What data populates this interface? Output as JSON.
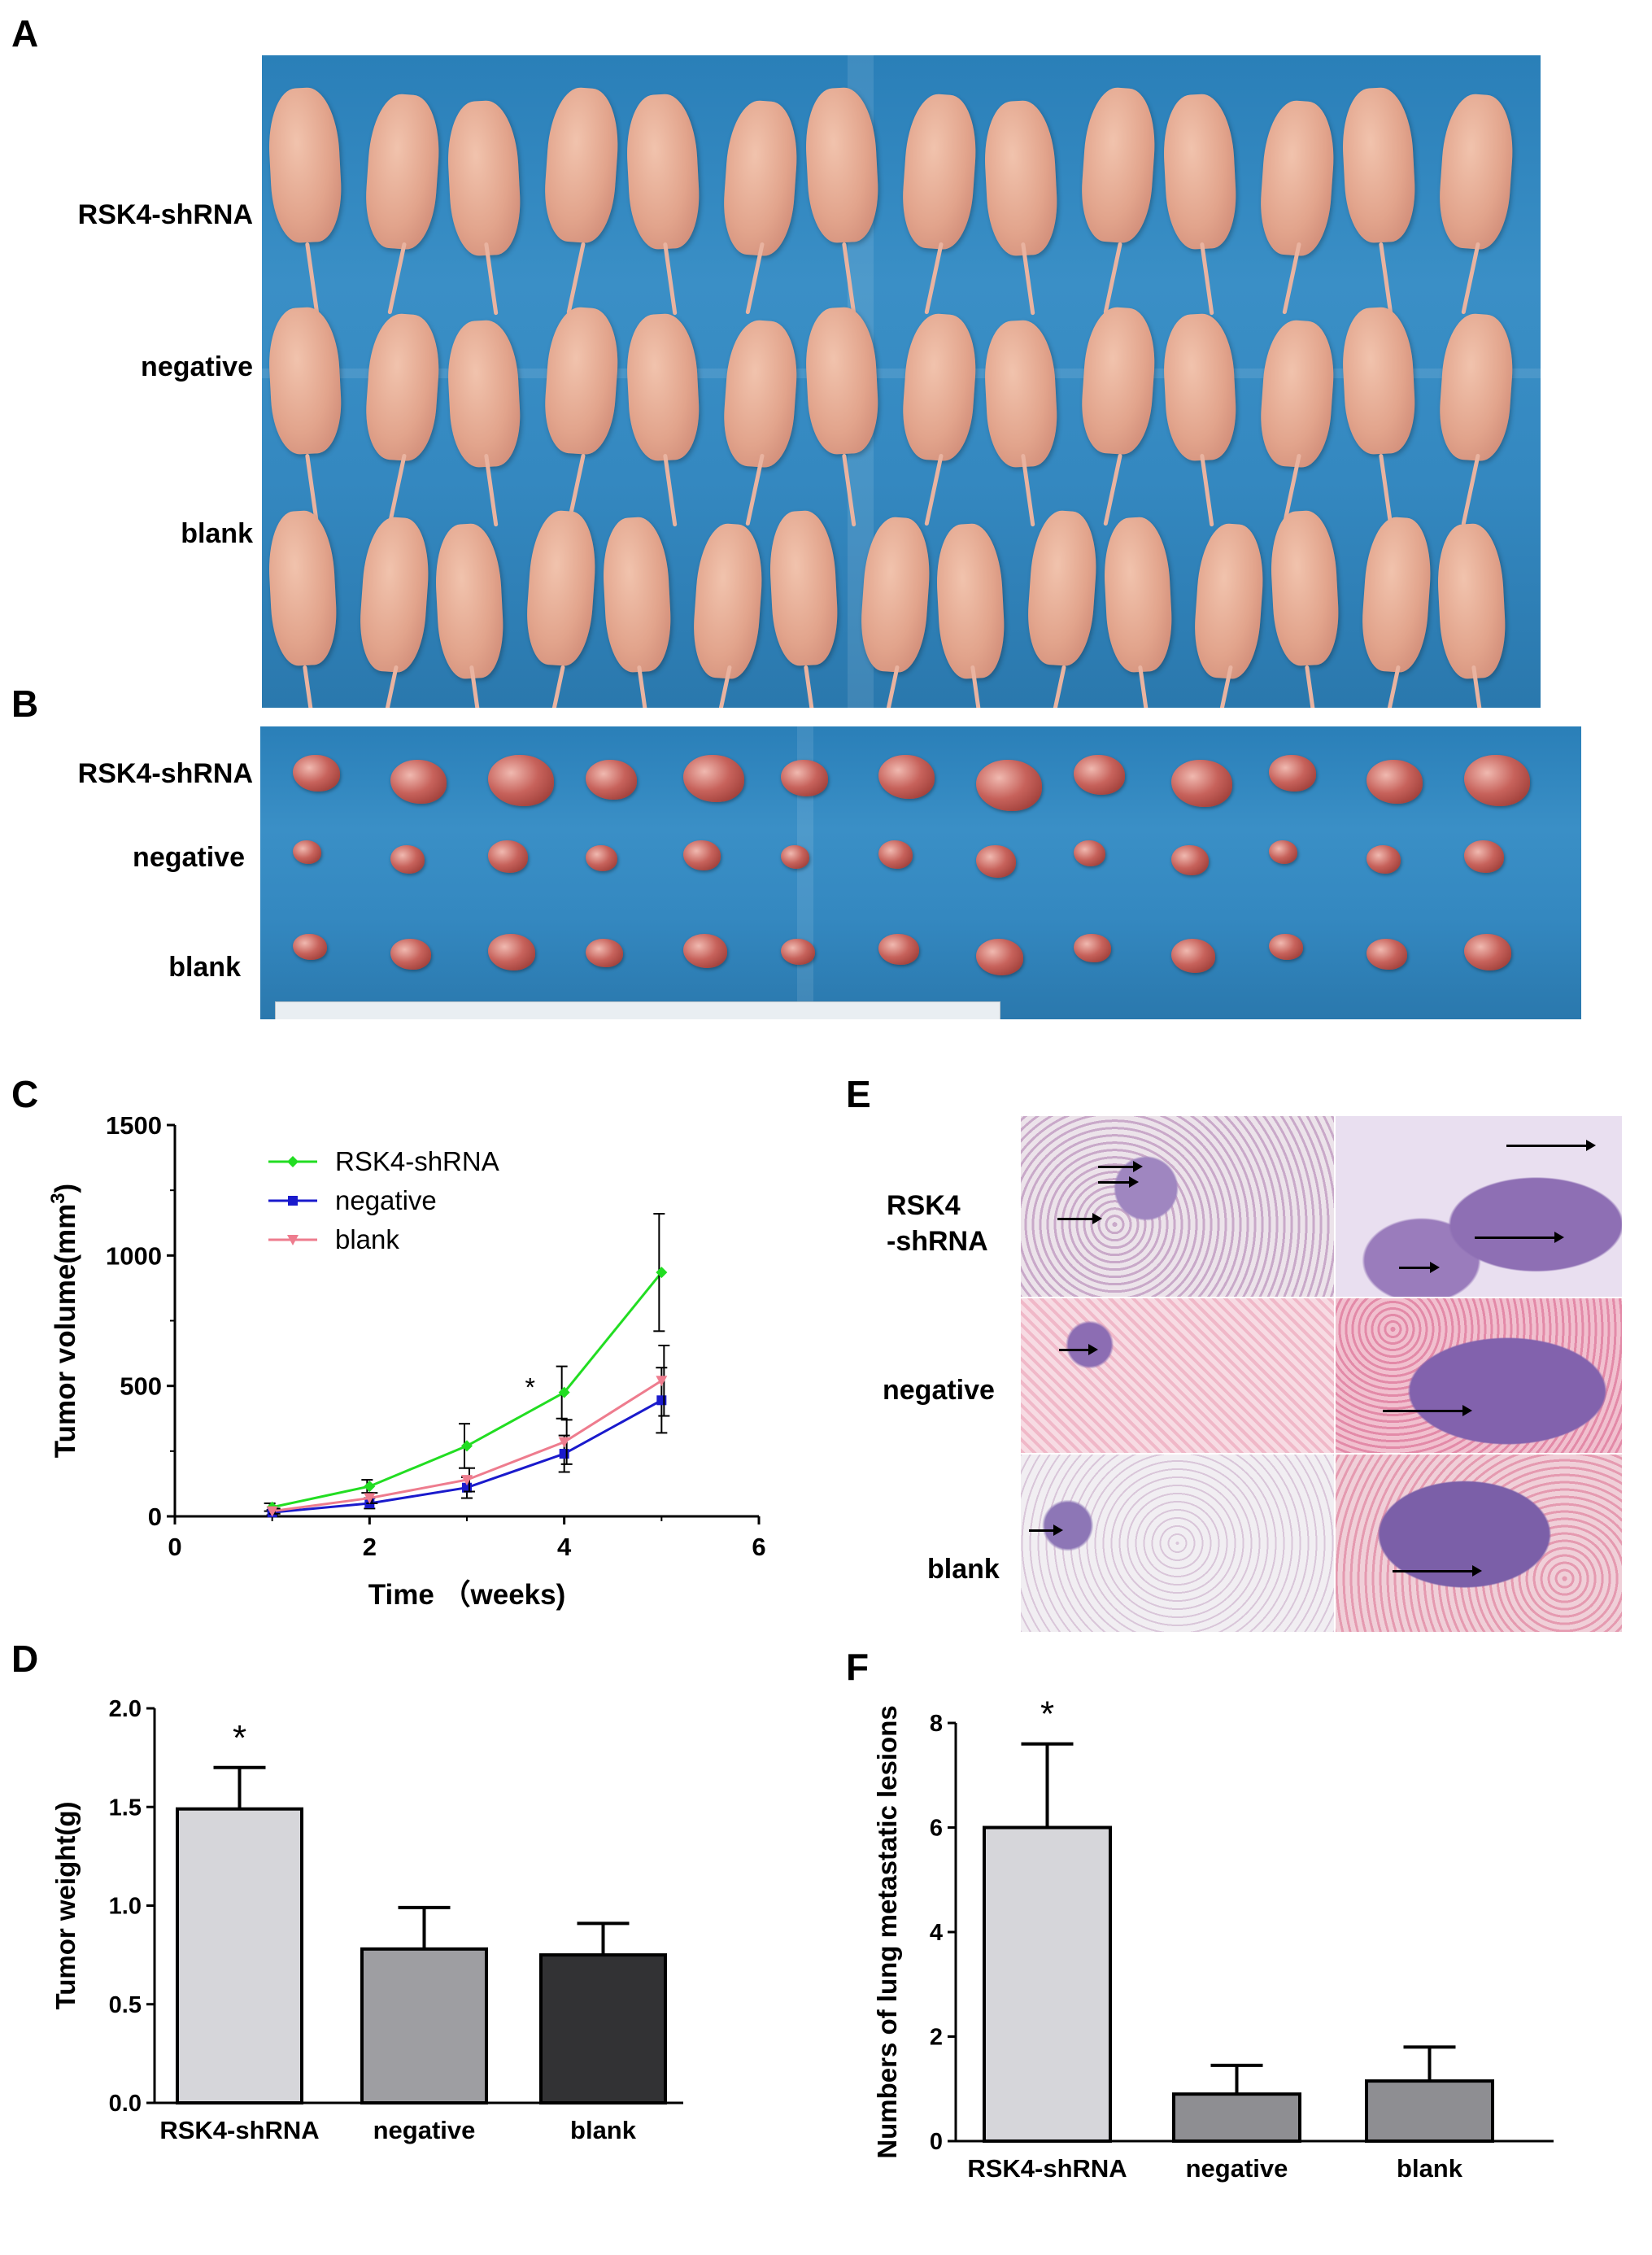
{
  "panels": {
    "A": {
      "letter": "A",
      "rows": [
        "RSK4-shRNA",
        "negative",
        "blank"
      ]
    },
    "B": {
      "letter": "B",
      "rows": [
        "RSK4-shRNA",
        "negative",
        "blank"
      ]
    },
    "C": {
      "letter": "C"
    },
    "D": {
      "letter": "D"
    },
    "E": {
      "letter": "E",
      "rows": [
        "RSK4\n-shRNA",
        "negative",
        "blank"
      ]
    },
    "F": {
      "letter": "F"
    }
  },
  "colors": {
    "rsk4_line": "#22dd22",
    "negative_line": "#1a1acc",
    "blank_line": "#ee7c8e",
    "bar_light": "#d6d6da",
    "bar_mid": "#9e9ea2",
    "bar_dark": "#323234",
    "bar_mid_f": "#8e8e92"
  },
  "chart_data": [
    {
      "panel": "C",
      "type": "line",
      "xlabel": "Time （weeks)",
      "ylabel": "Tumor volume(mm3)",
      "x": [
        1,
        2,
        3,
        4,
        5
      ],
      "xlim": [
        0,
        6
      ],
      "xticks": [
        0,
        2,
        4,
        6
      ],
      "ylim": [
        0,
        1500
      ],
      "yticks": [
        0,
        500,
        1000,
        1500
      ],
      "legend_position": "top-left",
      "annotations": [
        {
          "text": "*",
          "x": 3.65,
          "y": 460
        }
      ],
      "series": [
        {
          "name": "RSK4-shRNA",
          "color": "#22dd22",
          "marker": "diamond",
          "values": [
            35,
            115,
            270,
            475,
            935
          ],
          "errors": [
            15,
            25,
            85,
            100,
            225
          ]
        },
        {
          "name": "negative",
          "color": "#1a1acc",
          "marker": "square",
          "values": [
            15,
            50,
            110,
            240,
            445
          ],
          "errors": [
            10,
            20,
            40,
            70,
            125
          ]
        },
        {
          "name": "blank",
          "color": "#ee7c8e",
          "marker": "triangle-down",
          "values": [
            20,
            70,
            140,
            285,
            520
          ],
          "errors": [
            10,
            20,
            45,
            85,
            135
          ]
        }
      ]
    },
    {
      "panel": "D",
      "type": "bar",
      "ylabel": "Tumor weight(g)",
      "categories": [
        "RSK4-shRNA",
        "negative",
        "blank"
      ],
      "values": [
        1.49,
        0.78,
        0.75
      ],
      "errors": [
        0.21,
        0.21,
        0.16
      ],
      "ylim": [
        0,
        2.0
      ],
      "yticks": [
        "0.0",
        "0.5",
        "1.0",
        "1.5",
        "2.0"
      ],
      "annotations": [
        "*"
      ]
    },
    {
      "panel": "F",
      "type": "bar",
      "ylabel": "Numbers of lung metastatic lesions",
      "categories": [
        "RSK4-shRNA",
        "negative",
        "blank"
      ],
      "values": [
        6.0,
        0.9,
        1.15
      ],
      "errors": [
        1.6,
        0.55,
        0.65
      ],
      "ylim": [
        0,
        8
      ],
      "yticks": [
        "0",
        "2",
        "4",
        "6",
        "8"
      ],
      "annotations": [
        "*"
      ]
    }
  ]
}
